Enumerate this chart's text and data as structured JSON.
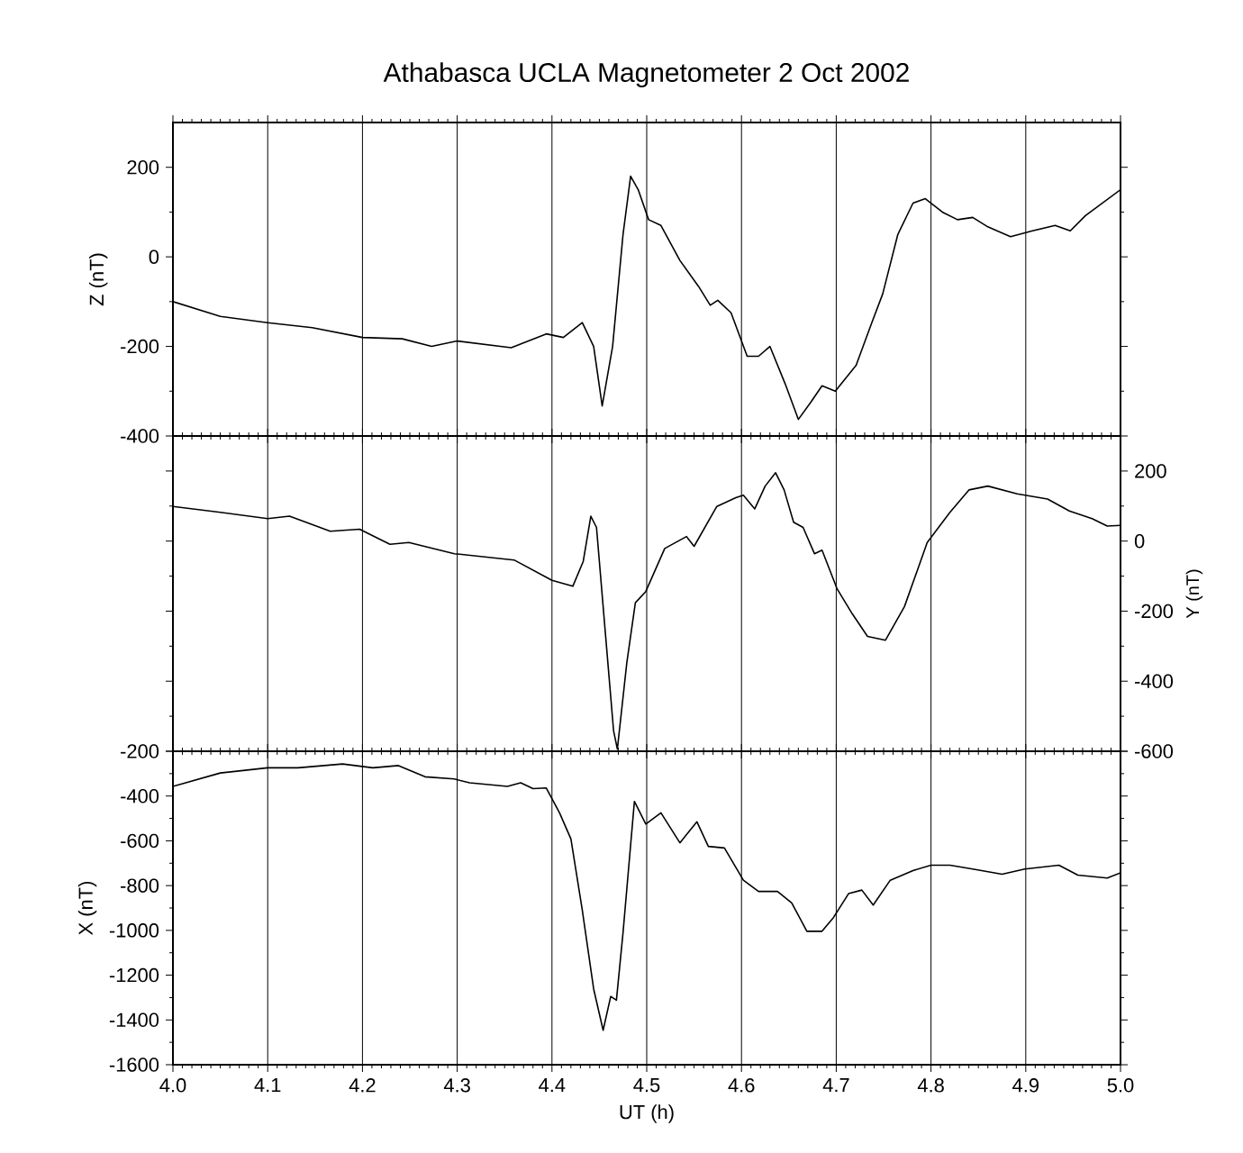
{
  "chart_data": [
    {
      "type": "line",
      "title": "Athabasca UCLA Magnetometer 2 Oct 2002",
      "ylabel": "Z (nT)",
      "xlim": [
        4.0,
        5.0
      ],
      "xticks": [
        4.0,
        4.1,
        4.2,
        4.3,
        4.4,
        4.5,
        4.6,
        4.7,
        4.8,
        4.9,
        5.0
      ],
      "ylim": [
        -400,
        300
      ],
      "yticks": [
        -400,
        -200,
        0,
        200
      ],
      "grid": "x",
      "tick_labels": "y",
      "marker": "none",
      "line_style": "solid",
      "x": [
        4.0,
        4.05,
        4.1,
        4.147,
        4.2,
        4.242,
        4.273,
        4.3,
        4.357,
        4.394,
        4.412,
        4.432,
        4.444,
        4.453,
        4.464,
        4.475,
        4.483,
        4.491,
        4.502,
        4.515,
        4.535,
        4.555,
        4.567,
        4.575,
        4.589,
        4.606,
        4.618,
        4.63,
        4.646,
        4.66,
        4.673,
        4.685,
        4.699,
        4.721,
        4.737,
        4.749,
        4.765,
        4.781,
        4.794,
        4.812,
        4.828,
        4.844,
        4.86,
        4.884,
        4.907,
        4.931,
        4.947,
        4.963,
        5.0
      ],
      "series": [
        {
          "color": "#000000",
          "values": [
            -100,
            -133,
            -147,
            -158,
            -180,
            -183,
            -200,
            -188,
            -203,
            -172,
            -180,
            -147,
            -200,
            -333,
            -200,
            50,
            180,
            150,
            83,
            70,
            -8,
            -67,
            -108,
            -97,
            -125,
            -222,
            -222,
            -200,
            -283,
            -363,
            -325,
            -288,
            -300,
            -242,
            -150,
            -83,
            50,
            120,
            130,
            100,
            83,
            88,
            67,
            45,
            58,
            70,
            58,
            92,
            150
          ]
        }
      ]
    },
    {
      "type": "line",
      "y2label": "Y (nT)",
      "xlim": [
        4.0,
        5.0
      ],
      "xticks": [
        4.0,
        4.1,
        4.2,
        4.3,
        4.4,
        4.5,
        4.6,
        4.7,
        4.8,
        4.9,
        5.0
      ],
      "y2lim": [
        -600,
        300
      ],
      "y2ticks": [
        -600,
        -400,
        -200,
        0,
        200
      ],
      "grid": "x",
      "tick_labels": "y",
      "marker": "none",
      "line_style": "solid",
      "x": [
        4.0,
        4.05,
        4.1,
        4.123,
        4.166,
        4.197,
        4.229,
        4.249,
        4.297,
        4.36,
        4.4,
        4.422,
        4.433,
        4.441,
        4.447,
        4.455,
        4.465,
        4.469,
        4.479,
        4.488,
        4.499,
        4.519,
        4.542,
        4.55,
        4.574,
        4.594,
        4.602,
        4.614,
        4.625,
        4.636,
        4.645,
        4.655,
        4.665,
        4.677,
        4.685,
        4.701,
        4.717,
        4.733,
        4.752,
        4.772,
        4.796,
        4.82,
        4.84,
        4.86,
        4.891,
        4.923,
        4.946,
        4.97,
        4.986,
        5.0
      ],
      "series": [
        {
          "color": "#000000",
          "axis": "y2",
          "values": [
            99,
            82,
            64,
            71,
            28,
            34,
            -9,
            -4,
            -36,
            -54,
            -112,
            -129,
            -58,
            71,
            39,
            -219,
            -541,
            -594,
            -347,
            -176,
            -144,
            -21,
            13,
            -15,
            99,
            124,
            131,
            92,
            157,
            195,
            146,
            54,
            39,
            -36,
            -26,
            -137,
            -208,
            -272,
            -283,
            -187,
            -4,
            82,
            146,
            157,
            135,
            120,
            86,
            64,
            43,
            45
          ]
        }
      ]
    },
    {
      "type": "line",
      "xlabel": "UT (h)",
      "ylabel": "X (nT)",
      "xlim": [
        4.0,
        5.0
      ],
      "xticks": [
        {
          "value": 4.0,
          "label": "4.0"
        },
        4.1,
        4.2,
        4.3,
        4.4,
        4.5,
        4.6,
        4.7,
        4.8,
        4.9,
        {
          "value": 5.0,
          "label": "5.0"
        }
      ],
      "ylim": [
        -1600,
        -200
      ],
      "yticks": [
        -1600,
        -1400,
        -1200,
        -1000,
        -800,
        -600,
        -400,
        -200
      ],
      "grid": "x",
      "marker": "none",
      "line_style": "solid",
      "x": [
        4.0,
        4.05,
        4.1,
        4.132,
        4.179,
        4.211,
        4.238,
        4.266,
        4.297,
        4.313,
        4.353,
        4.367,
        4.38,
        4.394,
        4.408,
        4.42,
        4.432,
        4.444,
        4.454,
        4.462,
        4.468,
        4.475,
        4.487,
        4.499,
        4.515,
        4.535,
        4.553,
        4.565,
        4.582,
        4.602,
        4.618,
        4.638,
        4.653,
        4.669,
        4.685,
        4.697,
        4.713,
        4.727,
        4.739,
        4.757,
        4.781,
        4.8,
        4.82,
        4.844,
        4.875,
        4.899,
        4.935,
        4.955,
        4.986,
        5.0
      ],
      "series": [
        {
          "color": "#000000",
          "values": [
            -357,
            -297,
            -274,
            -274,
            -257,
            -274,
            -264,
            -314,
            -324,
            -341,
            -357,
            -341,
            -367,
            -364,
            -475,
            -592,
            -910,
            -1262,
            -1446,
            -1295,
            -1312,
            -1010,
            -424,
            -525,
            -475,
            -609,
            -515,
            -625,
            -632,
            -776,
            -826,
            -826,
            -877,
            -1004,
            -1004,
            -943,
            -836,
            -820,
            -887,
            -776,
            -733,
            -709,
            -709,
            -726,
            -749,
            -726,
            -709,
            -753,
            -766,
            -743
          ]
        }
      ]
    }
  ]
}
